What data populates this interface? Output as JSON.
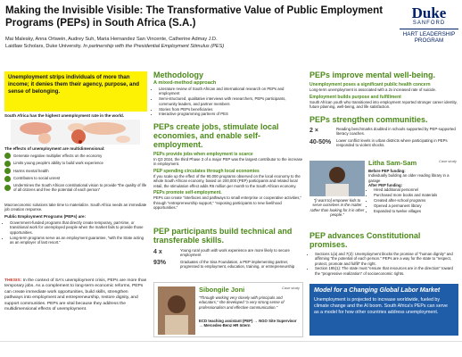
{
  "header": {
    "title": "Making the Invisible Visible: The Transformative Value of Public Employment Programs (PEPs) in South Africa (S.A.)",
    "authors": "Mai Malesky, Anna Ortwein, Audrey Suh, Maria Hernandez San Vincente, Catherine Admay J.D.",
    "affiliation": "Laidlaw Scholars, Duke University.",
    "partnership": "In partnership with the Presidential Employment Stimulus (PES)"
  },
  "logo": {
    "duke": "Duke",
    "school": "SANFORD",
    "program": "HART LEADERSHIP PROGRAM"
  },
  "intro": {
    "callout": "Unemployment strips individuals of more than income; it denies them their agency, purpose, and sense of belonging.",
    "map_caption": "South Africa has the highest unemployment rate in the world.",
    "effects_title": "The effects of unemployment are multidimensional:",
    "effects": [
      "Generate negative multiplier effects on the economy",
      "Limits young people's ability to build work experience",
      "Harms mental health",
      "Contributes to social unrest",
      "Undermines the South African constitutional vision to provide “the quality of life of all citizens and free the potential of each person”"
    ],
    "paragraph": "Macroeconomic solutions take time to materialize. South Africa needs an immediate job creation response.",
    "peps_title": "Public Employment Programs (PEPs) are:",
    "peps_bullets": [
      "Government-funded programs that directly create temporary, part-time, or transitional work for unemployed people when the market fails to provide those opportunities.",
      "Long-term programs serve as an employment guarantee, “with the State acting as an employer of last resort.”"
    ],
    "thesis_label": "THESIS:",
    "thesis": "In the context of SA's unemployment crisis, PEPs are more than temporary jobs. As a complement to long-term economic reforms, PEPs can create immediate work opportunities, build skills, strengthen pathways into employment and entrepreneurship, restore dignity, and support communities. PEPs are vital because they address the multidimensional effects of unemployment."
  },
  "methodology": {
    "title": "Methodology",
    "subtitle": "A mixed-method approach",
    "bullets": [
      "Literature review of South African and international research on PEPs and employment",
      "Semi-structured, qualitative interviews with researchers, PEPs participants, community leaders, and partner members",
      "Stories from PEPs beneficiaries",
      "Interactive programming partners of PES"
    ]
  },
  "jobs": {
    "title": "PEPs create jobs, stimulate local economies, and enable self-employment.",
    "sections": [
      {
        "heading": "PEPs provide jobs when employment is scarce",
        "text": "In Q3 2024, the third Phase 3 of a major PEP was the largest contributor to the increase in employment."
      },
      {
        "heading": "PEP spending circulates through local economies",
        "text": "If you scale up the effect of the 90,000 programs observed on the local economy to the whole South African economy, based on 200,000 (PEP) participants and related local retail, the stimulation effect adds R6 million per month to the South African economy."
      },
      {
        "heading": "PEPs promote self-employment.",
        "text": "PEPs can create “interfaces and pathways to small enterprise or cooperative activities,” through “entrepreneurship support,” “exposing participants to new livelihood opportunities.”"
      }
    ]
  },
  "skills": {
    "title": "PEP participants build technical and transferable skills.",
    "stats": [
      {
        "value": "4 x",
        "text": "Young rural youth with work experience are more likely to secure employment"
      },
      {
        "value": "93%",
        "text": "Graduates of the Sisa Foundation, a PEP implementing partner, progressed to employment, education, training, or entrepreneurship"
      }
    ],
    "case": {
      "name": "Sibongile Joni",
      "tag": "Case study",
      "quote": "“Through working very closely with principals and educators,” she developed “a very strong sense of professionalism and effective communication.”",
      "path": "ECD teaching assistant (PEP) → NGO Site Supervisor → Mercedes-Benz HR Intern"
    }
  },
  "wellbeing": {
    "title": "PEPs improve mental well-being.",
    "sections": [
      {
        "heading": "Unemployment poses a significant public health concern",
        "text": "Long-term unemployment is associated with a 2x increased rate of suicide."
      },
      {
        "heading": "Employment builds purpose and fulfillment",
        "text": "South African youth who transitioned into employment reported stronger career identity, future planning, well-being, and life satisfaction."
      }
    ]
  },
  "communities": {
    "title": "PEPs strengthen communities.",
    "stats": [
      {
        "value": "2 ×",
        "text": "Reading benchmarks doubled in schools supported by PEP-supported literacy coaches."
      },
      {
        "value": "40-50%",
        "text": "Lower conflict levels in urban districts where participating in PEPs responded to violent shocks."
      }
    ],
    "case": {
      "name": "Litha Sam-Sam",
      "tag": "Case study",
      "quote": "“[I want to] empower kids to serve ourselves in the matter rather than looking for it in other people.”",
      "before_label": "Before PEP funding:",
      "before": "Individually building an older reading library in a garage",
      "after_label": "After PEP funding:",
      "after": [
        "Hired additional personnel",
        "Purchased more books and materials",
        "Created after-school programs",
        "Opened a permanent library",
        "Expanded to twelve villages"
      ]
    }
  },
  "constitution": {
    "title": "PEP advances Constitutional promises.",
    "bullets": [
      "Sections 1(a) and 7(2): Unemployment blocks the promise of “human dignity” and affirming “the potential of each person.” PEPs are a way for the state to “respect, protect, promote and fulfill” the right.",
      "Section 195(1): The state must “ensure that resources are in the direction” toward the “progressive realization” of socioeconomic rights."
    ]
  },
  "model": {
    "title": "Model for a Changing Global Labor Market",
    "text": "Unemployment is projected to increase worldwide, fueled by climate change and the AI boom. South Africa's PEPs can serve as a model for how other countries address unemployment."
  }
}
